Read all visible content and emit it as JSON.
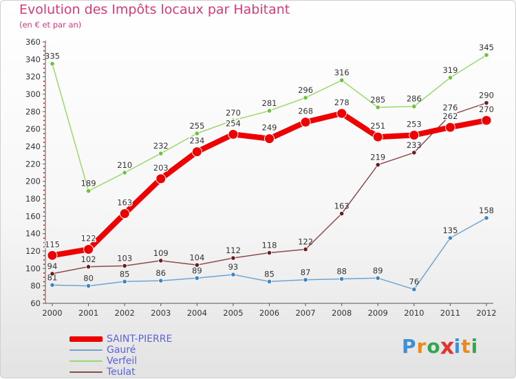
{
  "header": {
    "title": "Evolution des Impôts locaux par Habitant",
    "subtitle": "(en € et par an)"
  },
  "logo": {
    "text": "Proxiti",
    "letters": [
      {
        "ch": "P",
        "color": "#3d8fd8"
      },
      {
        "ch": "r",
        "color": "#e98a1c"
      },
      {
        "ch": "o",
        "color": "#2fa84f"
      },
      {
        "ch": "x",
        "color": "#e0362f"
      },
      {
        "ch": "i",
        "color": "#3d8fd8"
      },
      {
        "ch": "t",
        "color": "#e98a1c"
      },
      {
        "ch": "i",
        "color": "#2fa84f"
      }
    ]
  },
  "chart_data": {
    "type": "line",
    "title": "Evolution des Impôts locaux par Habitant",
    "subtitle": "(en € et par an)",
    "xlabel": "",
    "ylabel": "",
    "categories": [
      "2000",
      "2001",
      "2002",
      "2003",
      "2004",
      "2005",
      "2006",
      "2007",
      "2008",
      "2009",
      "2010",
      "2011",
      "2012"
    ],
    "ylim": [
      60,
      360
    ],
    "yticks": [
      60,
      80,
      100,
      120,
      140,
      160,
      180,
      200,
      220,
      240,
      260,
      280,
      300,
      320,
      340,
      360
    ],
    "grid": false,
    "legend_position": "bottom-left",
    "series": [
      {
        "name": "SAINT-PIERRE",
        "color": "#ee0000",
        "point_color": "#ee0000",
        "label_color": "#ffffff",
        "emphasis": true,
        "values": [
          115,
          122,
          163,
          203,
          234,
          254,
          249,
          268,
          278,
          251,
          253,
          262,
          270
        ]
      },
      {
        "name": "Gauré",
        "color": "#6fa3cf",
        "point_color": "#3d84c6",
        "label_color": "#333333",
        "emphasis": false,
        "values": [
          81,
          80,
          85,
          86,
          89,
          93,
          85,
          87,
          88,
          89,
          76,
          135,
          158
        ]
      },
      {
        "name": "Verfeil",
        "color": "#9ad86a",
        "point_color": "#6cc23a",
        "label_color": "#333333",
        "emphasis": false,
        "values": [
          335,
          189,
          210,
          232,
          255,
          270,
          281,
          296,
          316,
          285,
          286,
          319,
          345
        ]
      },
      {
        "name": "Teulat",
        "color": "#8a4a4a",
        "point_color": "#6b1d1d",
        "label_color": "#333333",
        "emphasis": false,
        "values": [
          94,
          102,
          103,
          109,
          104,
          112,
          118,
          122,
          163,
          219,
          233,
          276,
          290
        ]
      }
    ]
  }
}
